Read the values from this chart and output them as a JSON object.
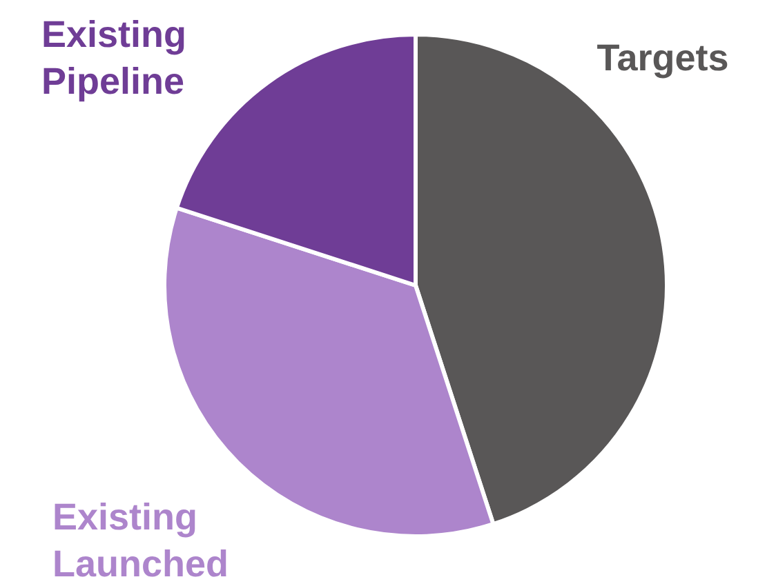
{
  "chart_data": {
    "type": "pie",
    "categories": [
      "Targets",
      "Existing Launched",
      "Existing Pipeline"
    ],
    "values": [
      45,
      35,
      20
    ],
    "colors": [
      "#595757",
      "#ad85cc",
      "#6f3d96"
    ],
    "legend": false
  }
}
